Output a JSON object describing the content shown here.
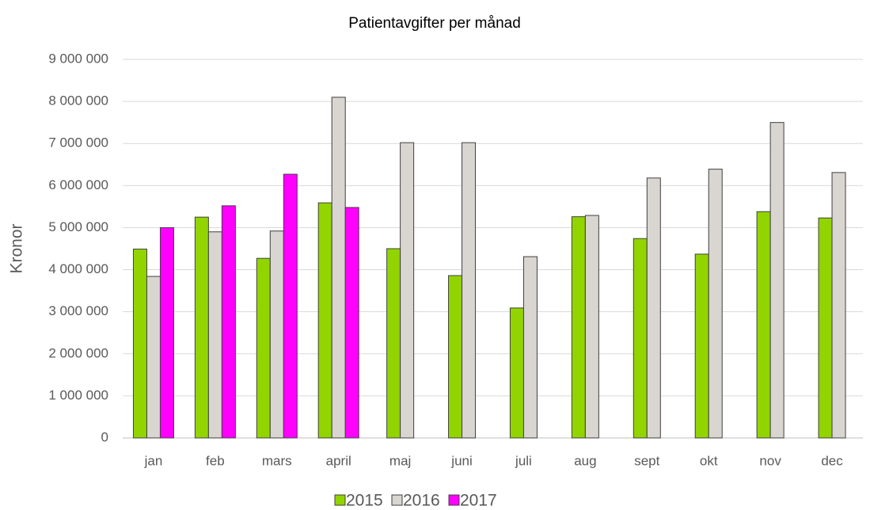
{
  "chart_data": {
    "type": "bar",
    "title": "Patientavgifter per månad",
    "y_label": "Kronor",
    "categories": [
      "jan",
      "feb",
      "mars",
      "april",
      "maj",
      "juni",
      "juli",
      "aug",
      "sept",
      "okt",
      "nov",
      "dec"
    ],
    "series": [
      {
        "name": "2015",
        "color": "#92d400",
        "values": [
          4490000,
          5250000,
          4270000,
          5590000,
          4500000,
          3860000,
          3090000,
          5260000,
          4740000,
          4370000,
          5380000,
          5230000
        ]
      },
      {
        "name": "2016",
        "color": "#d9d5d0",
        "values": [
          3840000,
          4900000,
          4920000,
          8100000,
          7020000,
          7020000,
          4310000,
          5290000,
          6180000,
          6390000,
          7500000,
          6310000
        ]
      },
      {
        "name": "2017",
        "color": "#ff00ff",
        "values": [
          5000000,
          5520000,
          6270000,
          5480000,
          null,
          null,
          null,
          null,
          null,
          null,
          null,
          null
        ]
      }
    ],
    "ylim": [
      0,
      9000000
    ],
    "yticks": [
      0,
      {
        "value": 1000000,
        "label": "1 000 000"
      },
      {
        "value": 2000000,
        "label": "2 000 000"
      },
      {
        "value": 3000000,
        "label": "3 000 000"
      },
      {
        "value": 4000000,
        "label": "4 000 000"
      },
      {
        "value": 5000000,
        "label": "5 000 000"
      },
      {
        "value": 6000000,
        "label": "6 000 000"
      },
      {
        "value": 7000000,
        "label": "7 000 000"
      },
      {
        "value": 8000000,
        "label": "8 000 000"
      },
      {
        "value": 9000000,
        "label": "9 000 000"
      }
    ],
    "grid": true,
    "legend": "bottom"
  }
}
